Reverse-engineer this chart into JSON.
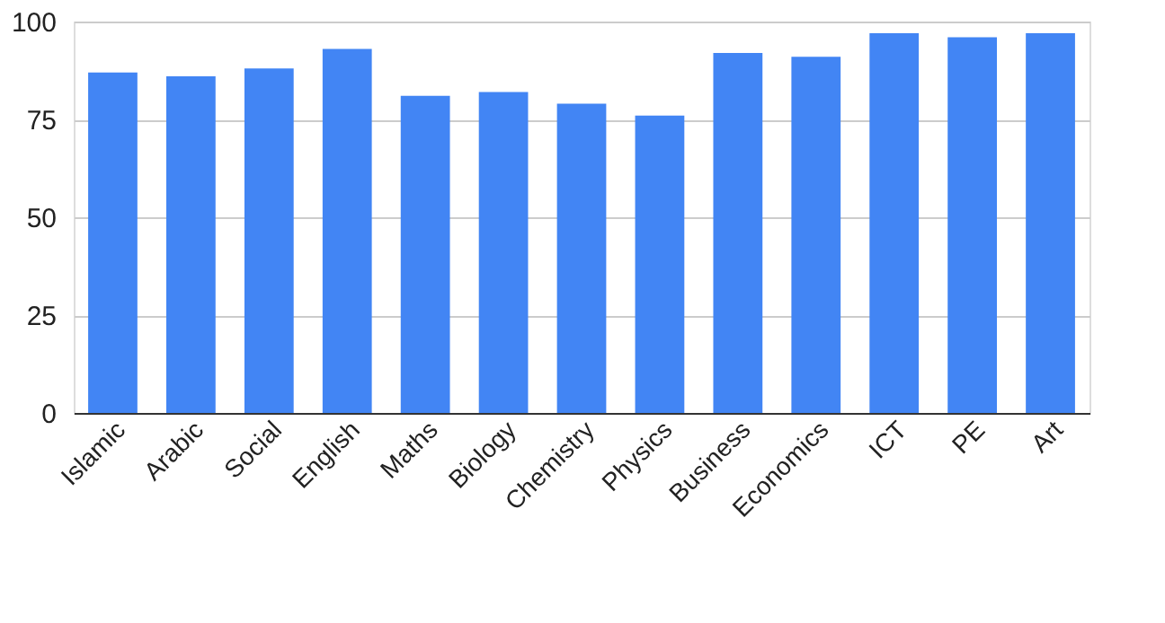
{
  "chart_data": {
    "type": "bar",
    "categories": [
      "Islamic",
      "Arabic",
      "Social",
      "English",
      "Maths",
      "Biology",
      "Chemistry",
      "Physics",
      "Business",
      "Economics",
      "ICT",
      "PE",
      "Art"
    ],
    "values": [
      87,
      86,
      88,
      93,
      81,
      82,
      79,
      76,
      92,
      91,
      97,
      96,
      97
    ],
    "color": "#4285f4",
    "ylim": [
      0,
      100
    ],
    "yticks": [
      0,
      25,
      50,
      75,
      100
    ],
    "grid": "y"
  }
}
